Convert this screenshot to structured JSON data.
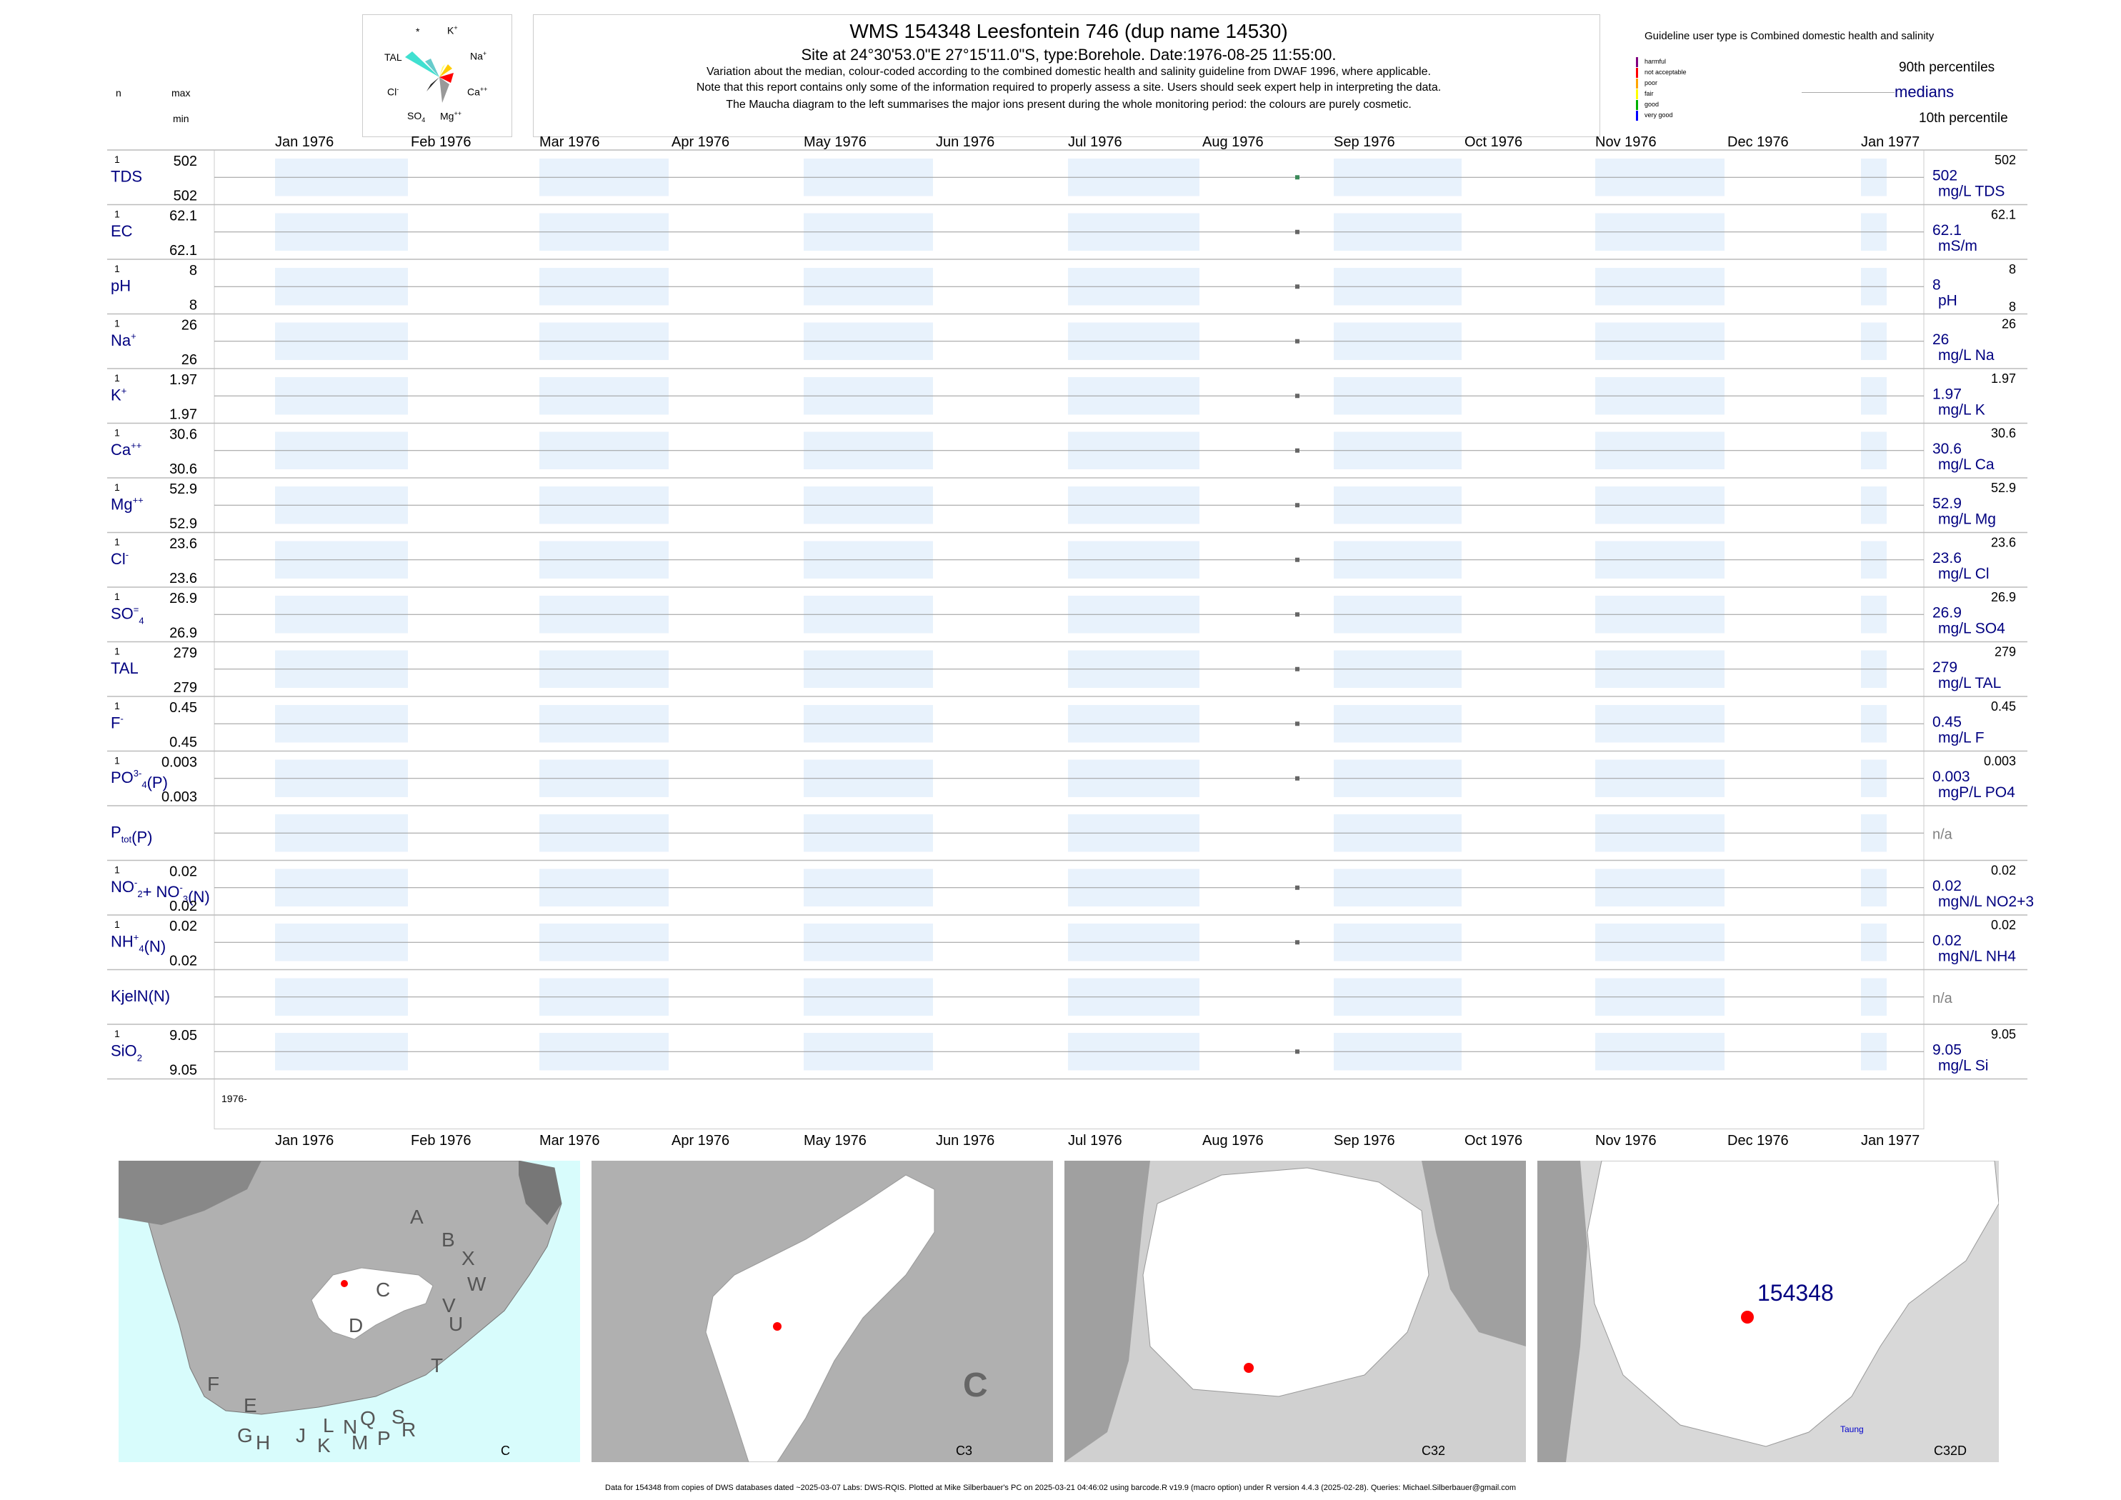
{
  "header": {
    "title": "WMS 154348  Leesfontein 746 (dup name 14530)",
    "subtitle": "Site at 24°30'53.0\"E 27°15'11.0\"S, type:Borehole. Date:1976-08-25 11:55:00.",
    "note1": "Variation about the median,  colour-coded according to the combined domestic health and salinity guideline from DWAF 1996, where applicable.",
    "note2": "Note that this report contains only some of the information required to properly assess a site. Users should seek expert help in interpreting the data.",
    "note3": "The Maucha diagram to the left summarises the major ions present during the whole monitoring period: the colours are purely cosmetic."
  },
  "left_header": {
    "n": "n",
    "max": "max",
    "min": "min"
  },
  "maucha": {
    "labels": {
      "star": "*",
      "k": "K",
      "na": "Na",
      "ca": "Ca",
      "mg": "Mg",
      "so4": "SO",
      "cl": "Cl",
      "tal": "TAL"
    },
    "sup_plus": "+",
    "sup_pp": "++",
    "sup_minus": "-",
    "sup_eq": "=",
    "sub_4": "4"
  },
  "guideline": {
    "title": "Guideline user type is Combined domestic health and salinity",
    "levels": [
      {
        "label": "harmful",
        "color": "#800080"
      },
      {
        "label": "not acceptable",
        "color": "#ff0000"
      },
      {
        "label": "poor",
        "color": "#ffa500"
      },
      {
        "label": "fair",
        "color": "#ffff00"
      },
      {
        "label": "good",
        "color": "#00b000"
      },
      {
        "label": "very good",
        "color": "#0000ff"
      }
    ],
    "p90": "90th percentiles",
    "medians": "medians",
    "p10": "10th percentile"
  },
  "months": [
    "Jan 1976",
    "Feb 1976",
    "Mar 1976",
    "Apr 1976",
    "May 1976",
    "Jun 1976",
    "Jul 1976",
    "Aug 1976",
    "Sep 1976",
    "Oct 1976",
    "Nov 1976",
    "Dec 1976",
    "Jan 1977"
  ],
  "year_label": "1976-",
  "rows": [
    {
      "label": "TDS",
      "n": "1",
      "max": "502",
      "min": "502",
      "med": "502",
      "unit": "mg/L TDS",
      "rmax": "502",
      "rmin": "",
      "has": true
    },
    {
      "label": "EC",
      "n": "1",
      "max": "62.1",
      "min": "62.1",
      "med": "62.1",
      "unit": "mS/m",
      "rmax": "62.1",
      "rmin": "",
      "has": true
    },
    {
      "label": "pH",
      "n": "1",
      "max": "8",
      "min": "8",
      "med": "8",
      "unit": "pH",
      "rmax": "8",
      "rmin": "8",
      "has": true
    },
    {
      "label": "Na",
      "sup": "+",
      "n": "1",
      "max": "26",
      "min": "26",
      "med": "26",
      "unit": "mg/L Na",
      "rmax": "26",
      "rmin": "",
      "has": true
    },
    {
      "label": "K",
      "sup": "+",
      "n": "1",
      "max": "1.97",
      "min": "1.97",
      "med": "1.97",
      "unit": "mg/L K",
      "rmax": "1.97",
      "rmin": "",
      "has": true
    },
    {
      "label": "Ca",
      "sup": "++",
      "n": "1",
      "max": "30.6",
      "min": "30.6",
      "med": "30.6",
      "unit": "mg/L Ca",
      "rmax": "30.6",
      "rmin": "",
      "has": true
    },
    {
      "label": "Mg",
      "sup": "++",
      "n": "1",
      "max": "52.9",
      "min": "52.9",
      "med": "52.9",
      "unit": "mg/L Mg",
      "rmax": "52.9",
      "rmin": "",
      "has": true
    },
    {
      "label": "Cl",
      "sup": "-",
      "n": "1",
      "max": "23.6",
      "min": "23.6",
      "med": "23.6",
      "unit": "mg/L Cl",
      "rmax": "23.6",
      "rmin": "",
      "has": true
    },
    {
      "label": "SO",
      "sup": "=",
      "sub": "4",
      "n": "1",
      "max": "26.9",
      "min": "26.9",
      "med": "26.9",
      "unit": "mg/L SO4",
      "rmax": "26.9",
      "rmin": "",
      "has": true
    },
    {
      "label": "TAL",
      "n": "1",
      "max": "279",
      "min": "279",
      "med": "279",
      "unit": "mg/L TAL",
      "rmax": "279",
      "rmin": "",
      "has": true
    },
    {
      "label": "F",
      "sup": "-",
      "n": "1",
      "max": "0.45",
      "min": "0.45",
      "med": "0.45",
      "unit": "mg/L F",
      "rmax": "0.45",
      "rmin": "",
      "has": true
    },
    {
      "label": "PO",
      "sup": "3-",
      "sub": "4",
      "tail": "(P)",
      "n": "1",
      "max": "0.003",
      "min": "0.003",
      "med": "0.003",
      "unit": "mgP/L PO4",
      "rmax": "0.003",
      "rmin": "",
      "has": true
    },
    {
      "label": "P",
      "sub": "tot",
      "tail": "(P)",
      "n": "",
      "max": "",
      "min": "",
      "med": "n/a",
      "unit": "",
      "rmax": "",
      "rmin": "",
      "has": false
    },
    {
      "label": "NO",
      "sup": "-",
      "sub": "2",
      "tail": "+ NO",
      "sup2": "-",
      "sub2": "3",
      "tail2": "(N)",
      "n": "1",
      "max": "0.02",
      "min": "0.02",
      "med": "0.02",
      "unit": "mgN/L NO2+3",
      "rmax": "0.02",
      "rmin": "",
      "has": true
    },
    {
      "label": "NH",
      "sup": "+",
      "sub": "4",
      "tail": "(N)",
      "n": "1",
      "max": "0.02",
      "min": "0.02",
      "med": "0.02",
      "unit": "mgN/L NH4",
      "rmax": "0.02",
      "rmin": "",
      "has": true
    },
    {
      "label": "KjelN(N)",
      "n": "",
      "max": "",
      "min": "",
      "med": "n/a",
      "unit": "",
      "rmax": "",
      "rmin": "",
      "has": false
    },
    {
      "label": "SiO",
      "sub": "2",
      "n": "1",
      "max": "9.05",
      "min": "9.05",
      "med": "9.05",
      "unit": "mg/L Si",
      "rmax": "9.05",
      "rmin": "",
      "has": true
    }
  ],
  "chart_data": {
    "type": "scatter",
    "x_range": [
      "1976-01-01",
      "1977-01-01"
    ],
    "sample_date": "1976-08-25",
    "series": [
      {
        "name": "TDS",
        "values": [
          502
        ]
      },
      {
        "name": "EC",
        "values": [
          62.1
        ]
      },
      {
        "name": "pH",
        "values": [
          8
        ]
      },
      {
        "name": "Na",
        "values": [
          26
        ]
      },
      {
        "name": "K",
        "values": [
          1.97
        ]
      },
      {
        "name": "Ca",
        "values": [
          30.6
        ]
      },
      {
        "name": "Mg",
        "values": [
          52.9
        ]
      },
      {
        "name": "Cl",
        "values": [
          23.6
        ]
      },
      {
        "name": "SO4",
        "values": [
          26.9
        ]
      },
      {
        "name": "TAL",
        "values": [
          279
        ]
      },
      {
        "name": "F",
        "values": [
          0.45
        ]
      },
      {
        "name": "PO4",
        "values": [
          0.003
        ]
      },
      {
        "name": "NO2+3",
        "values": [
          0.02
        ]
      },
      {
        "name": "NH4",
        "values": [
          0.02
        ]
      },
      {
        "name": "SiO2",
        "values": [
          9.05
        ]
      }
    ]
  },
  "maps": {
    "m1_letters": [
      "A",
      "B",
      "X",
      "W",
      "C",
      "V",
      "U",
      "D",
      "T",
      "F",
      "E",
      "L",
      "N",
      "Q",
      "S",
      "R",
      "J",
      "G",
      "H",
      "K",
      "M",
      "P"
    ],
    "m1_label": "C",
    "m2_label": "C3",
    "m2_big": "C",
    "m3_label": "C32",
    "m4_label": "C32D",
    "m4_site": "154348",
    "m4_town": "Taung",
    "sea_color": "#d8fcfc"
  },
  "footer": "Data for 154348 from copies of DWS databases dated ~2025-03-07 Labs: DWS-RQIS. Plotted at Mike Silberbauer's PC on 2025-03-21 04:46:02 using barcode.R v19.9 (macro option) under R version 4.4.3 (2025-02-28). Queries: Michael.Silberbauer@gmail.com"
}
